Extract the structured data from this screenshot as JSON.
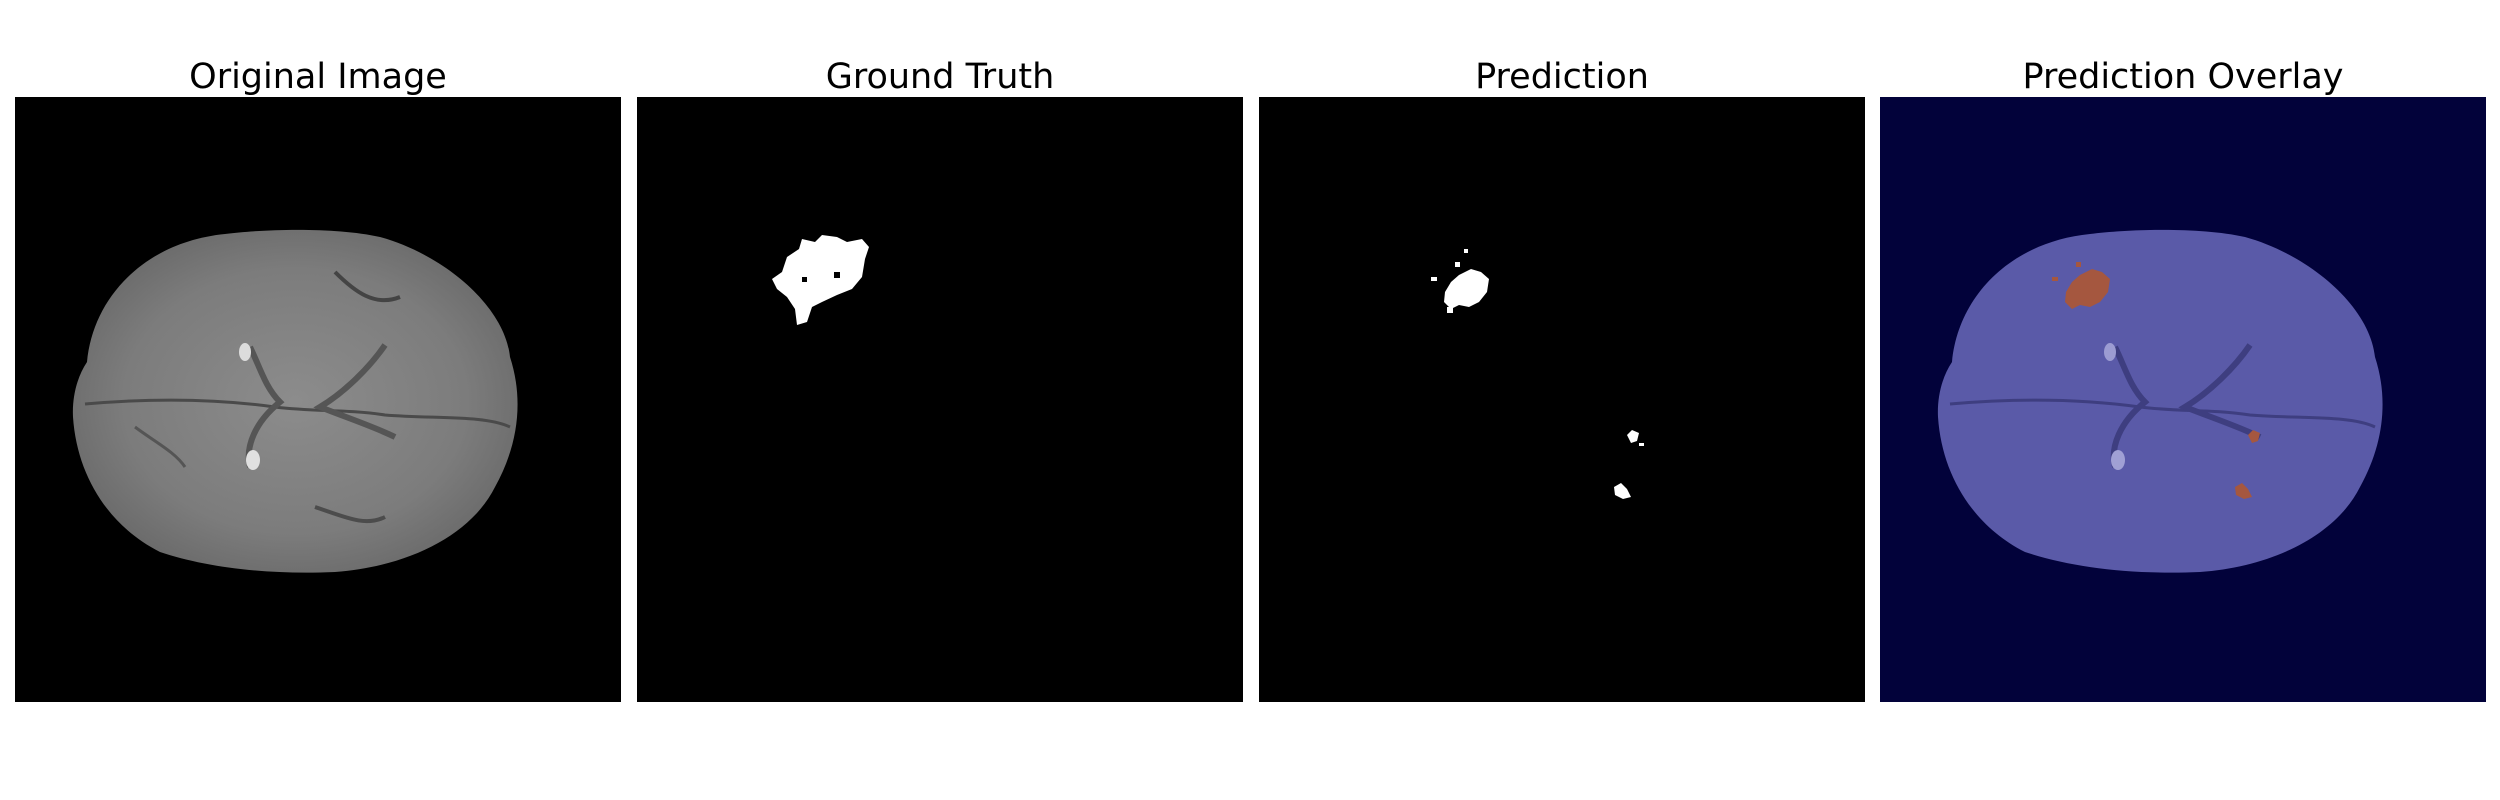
{
  "figure": {
    "panels": [
      {
        "title": "Original Image"
      },
      {
        "title": "Ground Truth"
      },
      {
        "title": "Prediction"
      },
      {
        "title": "Prediction Overlay"
      }
    ]
  },
  "colors": {
    "panel_background": "#000000",
    "mask_white": "#ffffff",
    "overlay_background": "#02023a",
    "overlay_tissue": "#5a5aa8",
    "overlay_lesion": "#a5573f"
  }
}
